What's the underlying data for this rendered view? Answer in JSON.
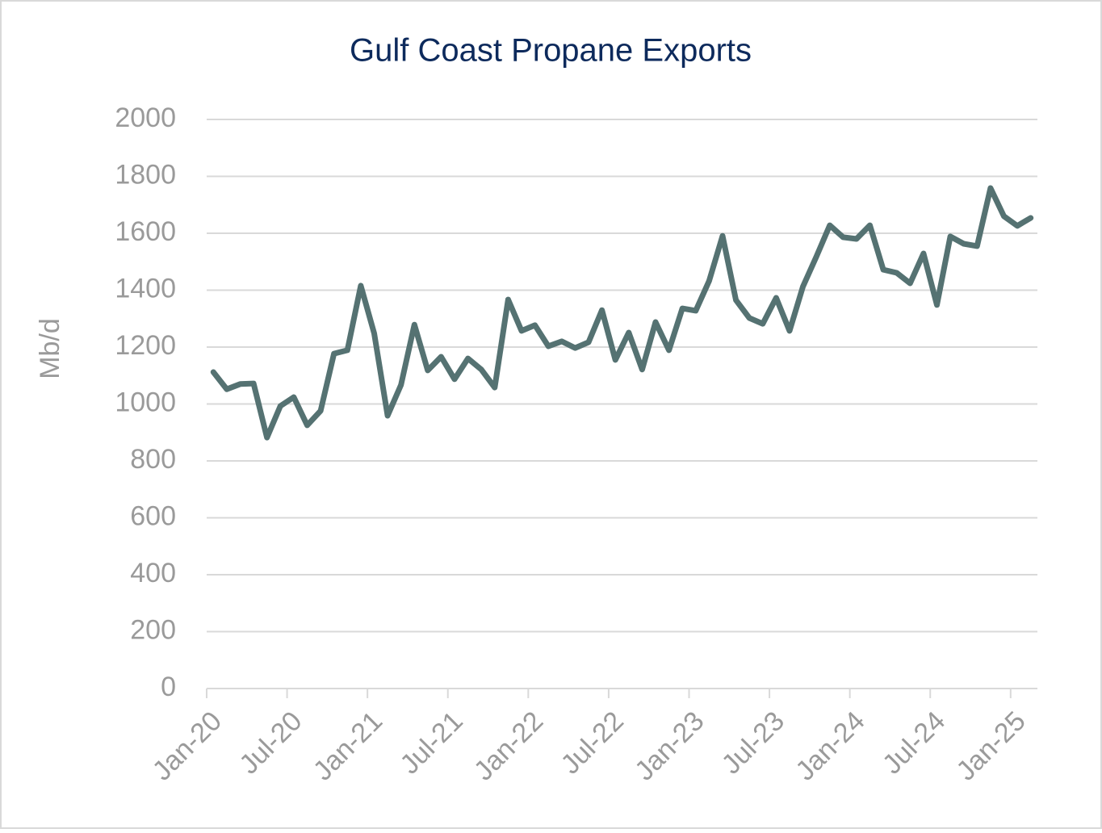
{
  "chart_data": {
    "type": "line",
    "title": "Gulf Coast Propane Exports",
    "y_label": "Mb/d",
    "categories": [
      "Jan-20",
      null,
      null,
      null,
      null,
      null,
      "Jul-20",
      null,
      null,
      null,
      null,
      null,
      "Jan-21",
      null,
      null,
      null,
      null,
      null,
      "Jul-21",
      null,
      null,
      null,
      null,
      null,
      "Jan-22",
      null,
      null,
      null,
      null,
      null,
      "Jul-22",
      null,
      null,
      null,
      null,
      null,
      "Jan-23",
      null,
      null,
      null,
      null,
      null,
      "Jul-23",
      null,
      null,
      null,
      null,
      null,
      "Jan-24",
      null,
      null,
      null,
      null,
      null,
      "Jul-24",
      null,
      null,
      null,
      null,
      null,
      "Jan-25",
      null
    ],
    "series": [
      {
        "name": "Gulf Coast Propane Exports",
        "color": "#557272",
        "values": [
          1112,
          1052,
          1070,
          1072,
          882,
          993,
          1024,
          925,
          976,
          1177,
          1189,
          1416,
          1248,
          959,
          1067,
          1279,
          1118,
          1166,
          1087,
          1160,
          1121,
          1058,
          1367,
          1257,
          1277,
          1203,
          1220,
          1197,
          1217,
          1330,
          1155,
          1251,
          1121,
          1288,
          1189,
          1336,
          1328,
          1433,
          1591,
          1365,
          1302,
          1282,
          1373,
          1257,
          1413,
          1518,
          1628,
          1586,
          1580,
          1628,
          1472,
          1461,
          1424,
          1529,
          1348,
          1589,
          1563,
          1555,
          1759,
          1660,
          1626,
          1654
        ]
      }
    ],
    "ylim": [
      0,
      2000
    ],
    "yticks": [
      0,
      200,
      400,
      600,
      800,
      1000,
      1200,
      1400,
      1600,
      1800,
      2000
    ],
    "grid": true
  }
}
